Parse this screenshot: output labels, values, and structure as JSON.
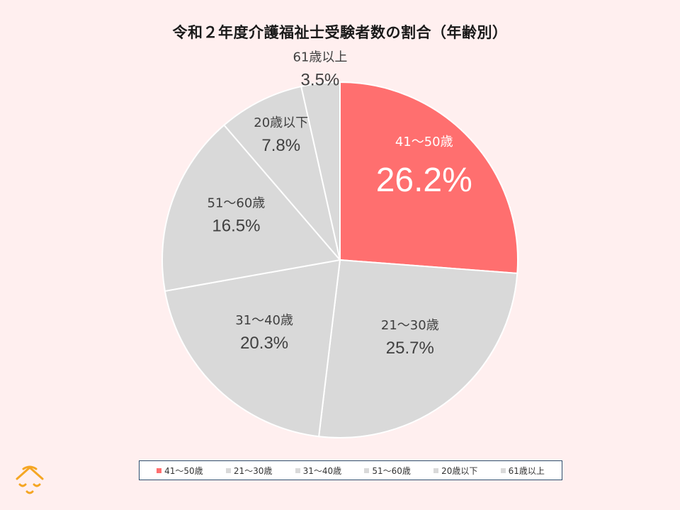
{
  "title": "令和２年度介護福祉士受験者数の割合（年齢別）",
  "chart_data": {
    "type": "pie",
    "start_angle": "12 o'clock",
    "direction": "clockwise",
    "slices": [
      {
        "label": "41～50歳",
        "value": 26.2,
        "display": "26.2%",
        "color": "#ff6f6f",
        "highlight": true
      },
      {
        "label": "21～30歳",
        "value": 25.7,
        "display": "25.7%",
        "color": "#d9d9d9",
        "highlight": false
      },
      {
        "label": "31～40歳",
        "value": 20.3,
        "display": "20.3%",
        "color": "#d9d9d9",
        "highlight": false
      },
      {
        "label": "51～60歳",
        "value": 16.5,
        "display": "16.5%",
        "color": "#d9d9d9",
        "highlight": false
      },
      {
        "label": "20歳以下",
        "value": 7.8,
        "display": "7.8%",
        "color": "#d9d9d9",
        "highlight": false
      },
      {
        "label": "61歳以上",
        "value": 3.5,
        "display": "3.5%",
        "color": "#d9d9d9",
        "highlight": false
      }
    ],
    "legend_placement": "bottom"
  },
  "legend": [
    {
      "label": "41～50歳",
      "color": "#ff6f6f"
    },
    {
      "label": "21～30歳",
      "color": "#d9d9d9"
    },
    {
      "label": "31～40歳",
      "color": "#d9d9d9"
    },
    {
      "label": "51～60歳",
      "color": "#d9d9d9"
    },
    {
      "label": "20歳以下",
      "color": "#d9d9d9"
    },
    {
      "label": "61歳以上",
      "color": "#d9d9d9"
    }
  ],
  "logo": {
    "icon": "smiling-face-icon",
    "color": "#f5a623"
  }
}
